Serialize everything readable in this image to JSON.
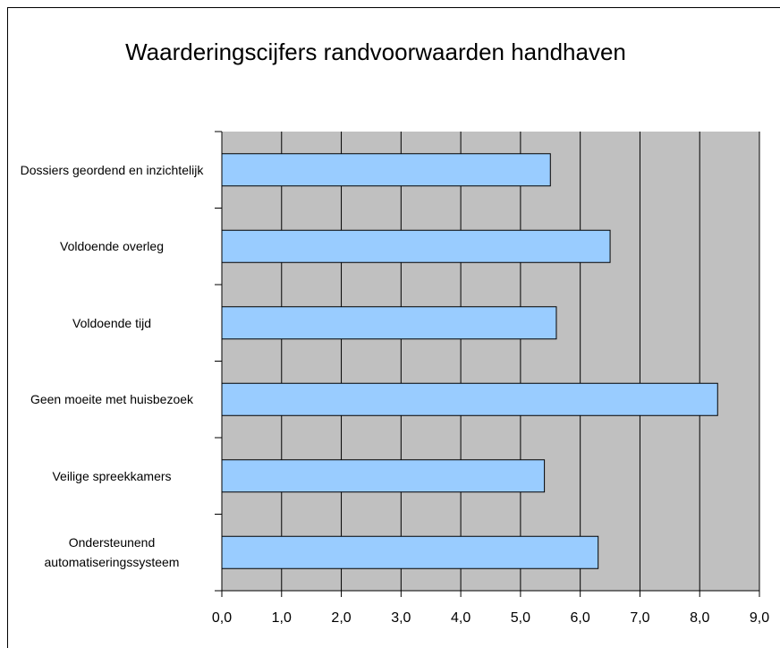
{
  "chart_data": {
    "type": "bar",
    "orientation": "horizontal",
    "title": "Waarderingscijfers randvoorwaarden handhaven",
    "categories": [
      "Dossiers geordend en inzichtelijk",
      "Voldoende overleg",
      "Voldoende tijd",
      "Geen moeite met huisbezoek",
      "Veilige spreekkamers",
      "Ondersteunend automatiseringssysteem"
    ],
    "values": [
      5.5,
      6.5,
      5.6,
      8.3,
      5.4,
      6.3
    ],
    "color": "#99ccff",
    "xlim": [
      0,
      9
    ],
    "xticks": [
      {
        "value": 0,
        "label": "0,0"
      },
      {
        "value": 1,
        "label": "1,0"
      },
      {
        "value": 2,
        "label": "2,0"
      },
      {
        "value": 3,
        "label": "3,0"
      },
      {
        "value": 4,
        "label": "4,0"
      },
      {
        "value": 5,
        "label": "5,0"
      },
      {
        "value": 6,
        "label": "6,0"
      },
      {
        "value": 7,
        "label": "7,0"
      },
      {
        "value": 8,
        "label": "8,0"
      },
      {
        "value": 9,
        "label": "9,0"
      }
    ],
    "grid": true
  }
}
